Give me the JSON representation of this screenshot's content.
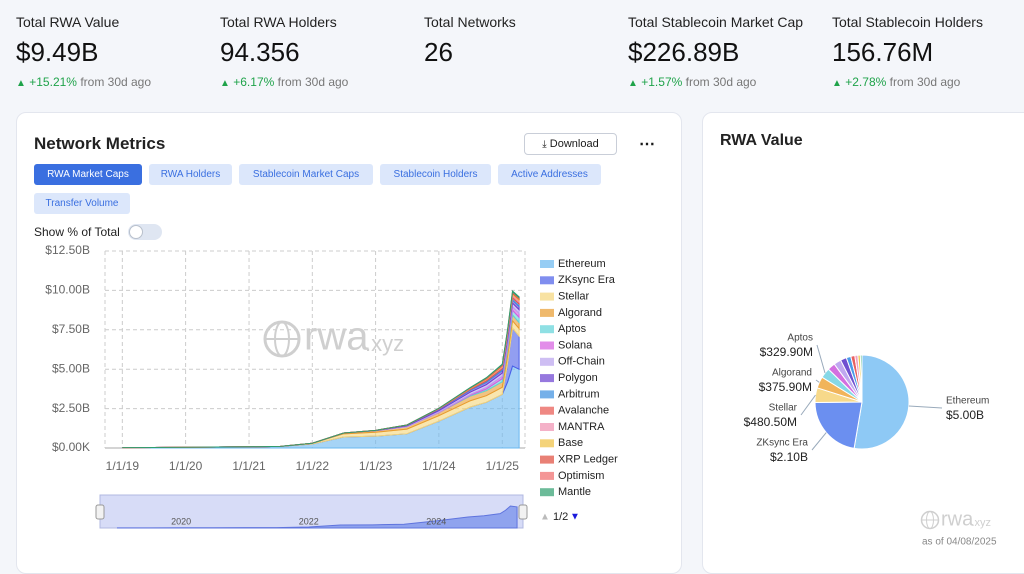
{
  "stats": [
    {
      "label": "Total RWA Value",
      "value": "$9.49B",
      "change": "+15.21%",
      "period": "from 30d ago"
    },
    {
      "label": "Total RWA Holders",
      "value": "94.356",
      "change": "+6.17%",
      "period": "from 30d ago"
    },
    {
      "label": "Total Networks",
      "value": "26"
    },
    {
      "label": "Total Stablecoin Market Cap",
      "value": "$226.89B",
      "change": "+1.57%",
      "period": "from 30d ago"
    },
    {
      "label": "Total Stablecoin Holders",
      "value": "156.76M",
      "change": "+2.78%",
      "period": "from 30d ago"
    }
  ],
  "metrics_card": {
    "download": "Download",
    "tabs": [
      "RWA Market Caps",
      "RWA Holders",
      "Stablecoin Market Caps",
      "Stablecoin Holders",
      "Active Addresses",
      "Transfer Volume"
    ],
    "active_tab": 0,
    "toggle_label": "Show % of Total"
  },
  "watermark": {
    "main": "rwa",
    "suffix": ".xyz"
  },
  "as_of": "as of 04/08/2025",
  "chart_data": [
    {
      "type": "area",
      "title": "Network Metrics",
      "stacked": true,
      "x": [
        "2019-01-01",
        "2019-07-01",
        "2020-01-01",
        "2020-07-01",
        "2021-01-01",
        "2021-07-01",
        "2022-01-01",
        "2022-07-01",
        "2023-01-01",
        "2023-07-01",
        "2024-01-01",
        "2024-07-01",
        "2024-10-01",
        "2025-01-01",
        "2025-02-01",
        "2025-03-01",
        "2025-04-08"
      ],
      "series": [
        {
          "name": "Ethereum",
          "color": "#6ab8f0",
          "values": [
            0.02,
            0.03,
            0.05,
            0.06,
            0.08,
            0.1,
            0.25,
            0.7,
            0.75,
            0.9,
            1.7,
            2.6,
            2.9,
            3.4,
            4.2,
            5.2,
            5.0
          ]
        },
        {
          "name": "ZKsync Era",
          "color": "#4a5ee8",
          "values": [
            0,
            0,
            0,
            0,
            0,
            0,
            0,
            0,
            0,
            0,
            0,
            0,
            0,
            0,
            1.2,
            2.4,
            2.1
          ]
        },
        {
          "name": "Stellar",
          "color": "#f5d67a",
          "values": [
            0,
            0,
            0,
            0,
            0,
            0,
            0.05,
            0.2,
            0.25,
            0.3,
            0.35,
            0.4,
            0.42,
            0.45,
            0.46,
            0.47,
            0.48
          ]
        },
        {
          "name": "Algorand",
          "color": "#e89b2e",
          "values": [
            0,
            0,
            0,
            0,
            0,
            0,
            0,
            0.05,
            0.1,
            0.15,
            0.2,
            0.3,
            0.32,
            0.35,
            0.36,
            0.37,
            0.38
          ]
        },
        {
          "name": "Aptos",
          "color": "#5fd3d8",
          "values": [
            0,
            0,
            0,
            0,
            0,
            0,
            0,
            0,
            0,
            0,
            0,
            0.05,
            0.1,
            0.2,
            0.25,
            0.3,
            0.33
          ]
        },
        {
          "name": "Solana",
          "color": "#d65de0",
          "values": [
            0,
            0,
            0,
            0,
            0,
            0,
            0,
            0,
            0,
            0,
            0.02,
            0.05,
            0.1,
            0.15,
            0.2,
            0.22,
            0.25
          ]
        },
        {
          "name": "Off-Chain",
          "color": "#b9a2ee",
          "values": [
            0,
            0,
            0,
            0,
            0,
            0,
            0,
            0,
            0,
            0.05,
            0.1,
            0.15,
            0.18,
            0.2,
            0.22,
            0.23,
            0.24
          ]
        },
        {
          "name": "Polygon",
          "color": "#6a3fd0",
          "values": [
            0,
            0,
            0,
            0,
            0,
            0,
            0,
            0,
            0.02,
            0.05,
            0.08,
            0.12,
            0.15,
            0.17,
            0.18,
            0.19,
            0.2
          ]
        },
        {
          "name": "Arbitrum",
          "color": "#3a8fe0",
          "values": [
            0,
            0,
            0,
            0,
            0,
            0,
            0,
            0,
            0,
            0,
            0.02,
            0.05,
            0.08,
            0.1,
            0.12,
            0.14,
            0.15
          ]
        },
        {
          "name": "Avalanche",
          "color": "#e8554e",
          "values": [
            0,
            0,
            0,
            0,
            0,
            0,
            0,
            0,
            0,
            0.01,
            0.03,
            0.06,
            0.08,
            0.1,
            0.11,
            0.12,
            0.13
          ]
        },
        {
          "name": "MANTRA",
          "color": "#f090b0",
          "values": [
            0,
            0,
            0,
            0,
            0,
            0,
            0,
            0,
            0,
            0,
            0,
            0,
            0.02,
            0.05,
            0.08,
            0.1,
            0.1
          ]
        },
        {
          "name": "Base",
          "color": "#f0c040",
          "values": [
            0,
            0,
            0,
            0,
            0,
            0,
            0,
            0,
            0,
            0,
            0.01,
            0.02,
            0.04,
            0.05,
            0.06,
            0.07,
            0.08
          ]
        },
        {
          "name": "XRP Ledger",
          "color": "#e04a3a",
          "values": [
            0,
            0,
            0,
            0,
            0,
            0,
            0,
            0,
            0,
            0,
            0,
            0.01,
            0.02,
            0.03,
            0.04,
            0.05,
            0.05
          ]
        },
        {
          "name": "Optimism",
          "color": "#f06a6a",
          "values": [
            0,
            0,
            0,
            0,
            0,
            0,
            0,
            0,
            0,
            0,
            0.01,
            0.02,
            0.03,
            0.04,
            0.04,
            0.05,
            0.05
          ]
        },
        {
          "name": "Mantle",
          "color": "#2e9e6e",
          "values": [
            0,
            0,
            0,
            0,
            0,
            0,
            0,
            0,
            0,
            0,
            0,
            0.01,
            0.02,
            0.03,
            0.04,
            0.05,
            0.05
          ]
        }
      ],
      "xlim": [
        "2018-09-23",
        "2025-05-12"
      ],
      "xticks": [
        {
          "value": "2019-01-01",
          "label": "1/1/19"
        },
        {
          "value": "2020-01-01",
          "label": "1/1/20"
        },
        {
          "value": "2021-01-01",
          "label": "1/1/21"
        },
        {
          "value": "2022-01-01",
          "label": "1/1/22"
        },
        {
          "value": "2023-01-01",
          "label": "1/1/23"
        },
        {
          "value": "2024-01-01",
          "label": "1/1/24"
        },
        {
          "value": "2025-01-01",
          "label": "1/1/25"
        }
      ],
      "ylim": [
        0,
        12.5
      ],
      "yticks": [
        {
          "value": 0,
          "label": "$0.00K"
        },
        {
          "value": 2.5,
          "label": "$2.50B"
        },
        {
          "value": 5,
          "label": "$5.00B"
        },
        {
          "value": 7.5,
          "label": "$7.50B"
        },
        {
          "value": 10,
          "label": "$10.00B"
        },
        {
          "value": 12.5,
          "label": "$12.50B"
        }
      ],
      "grid": true,
      "legend_page": "1/2",
      "navigator_xticks": [
        {
          "value": "2020-01-01",
          "label": "2020"
        },
        {
          "value": "2022-01-01",
          "label": "2022"
        },
        {
          "value": "2024-01-01",
          "label": "2024"
        }
      ]
    },
    {
      "type": "pie",
      "title": "RWA Value",
      "categories": [
        "Ethereum",
        "ZKsync Era",
        "Stellar",
        "Algorand",
        "Aptos",
        null,
        null,
        null,
        null,
        null,
        null,
        null,
        null
      ],
      "values": [
        5000,
        2100,
        480.5,
        375.9,
        329.9,
        250,
        240,
        200,
        150,
        130,
        100,
        80,
        53.7
      ],
      "value_labels": [
        "$5.00B",
        "$2.10B",
        "$480.50M",
        "$375.90M",
        "$329.90M",
        null,
        null,
        null,
        null,
        null,
        null,
        null,
        null
      ],
      "colors": [
        "#8ec9f5",
        "#6b8ff0",
        "#f7d98a",
        "#f1b45a",
        "#86d8e6",
        "#d36fe0",
        "#c0a8f0",
        "#7050d0",
        "#4a9ae8",
        "#e86060",
        "#f2a0c0",
        "#f0c850",
        "#5bbf8e"
      ]
    }
  ]
}
